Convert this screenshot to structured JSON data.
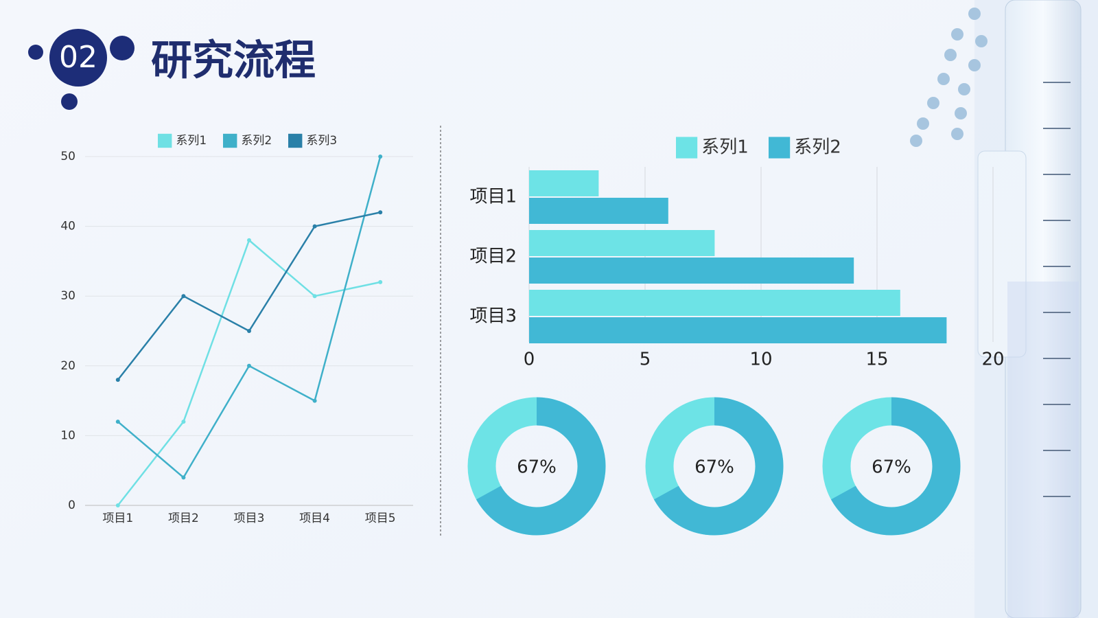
{
  "header": {
    "number": "02",
    "title": "研究流程"
  },
  "chart_data": [
    {
      "type": "line",
      "legend": "top",
      "grid": true,
      "categories": [
        "项目1",
        "项目2",
        "项目3",
        "项目4",
        "项目5"
      ],
      "series": [
        {
          "name": "系列1",
          "color": "#6fe0e4",
          "values": [
            0,
            12,
            38,
            30,
            32
          ]
        },
        {
          "name": "系列2",
          "color": "#3fb0c9",
          "values": [
            12,
            4,
            20,
            15,
            50
          ]
        },
        {
          "name": "系列3",
          "color": "#2a80a8",
          "values": [
            18,
            30,
            25,
            40,
            42
          ]
        }
      ],
      "ylim": [
        0,
        50
      ],
      "yticks": [
        0,
        10,
        20,
        30,
        40,
        50
      ]
    },
    {
      "type": "bar",
      "orientation": "horizontal",
      "legend": "top",
      "grid": true,
      "categories": [
        "项目1",
        "项目2",
        "项目3"
      ],
      "series": [
        {
          "name": "系列1",
          "color": "#6de3e6",
          "values": [
            3,
            8,
            16
          ]
        },
        {
          "name": "系列2",
          "color": "#41b8d5",
          "values": [
            6,
            14,
            18
          ]
        }
      ],
      "xlim": [
        0,
        20
      ],
      "xticks": [
        0,
        5,
        10,
        15,
        20
      ]
    },
    {
      "type": "donut",
      "values": [
        67
      ],
      "value_labels": [
        "67%"
      ],
      "color": "#41b8d5",
      "track_color": "#6de3e6"
    },
    {
      "type": "donut",
      "values": [
        67
      ],
      "value_labels": [
        "67%"
      ],
      "color": "#41b8d5",
      "track_color": "#6de3e6"
    },
    {
      "type": "donut",
      "values": [
        67
      ],
      "value_labels": [
        "67%"
      ],
      "color": "#41b8d5",
      "track_color": "#6de3e6"
    }
  ]
}
